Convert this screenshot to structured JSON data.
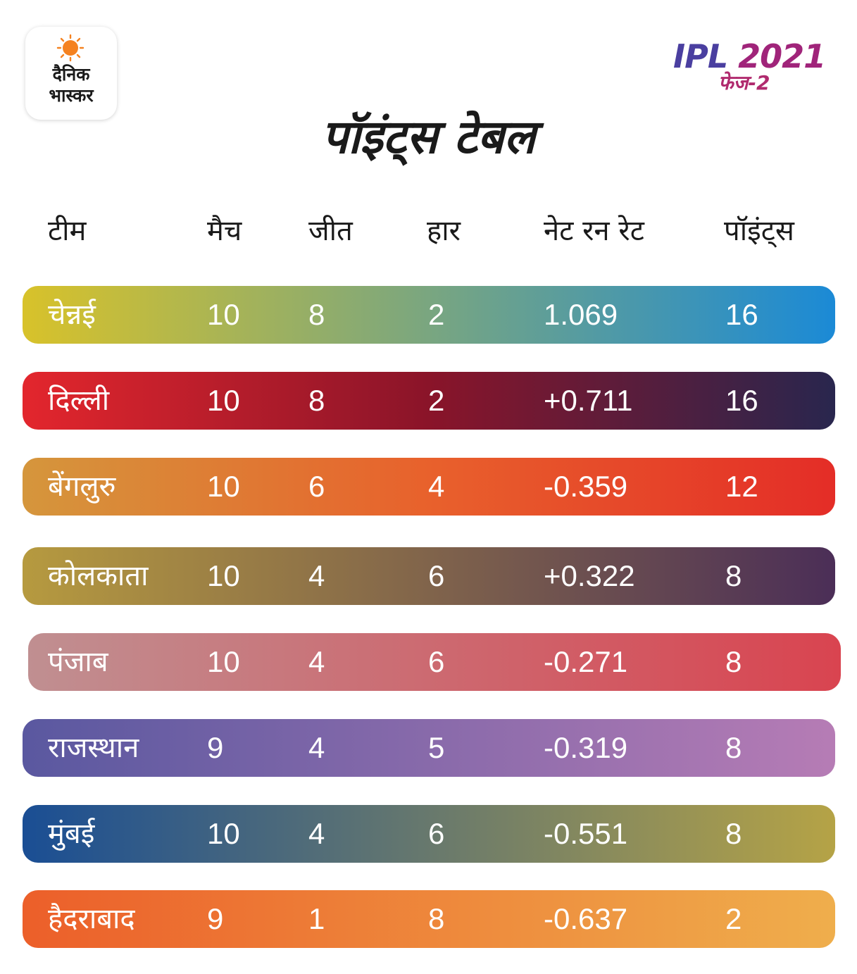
{
  "brand": {
    "line1": "दैनिक",
    "line2": "भास्कर"
  },
  "badge": {
    "title": "IPL",
    "year": "2021",
    "phase": "फेज-2"
  },
  "title": "पॉइंट्स टेबल",
  "headers": {
    "team": "टीम",
    "matches": "मैच",
    "won": "जीत",
    "lost": "हार",
    "nrr": "नेट रन रेट",
    "points": "पॉइंट्स"
  },
  "rows": [
    {
      "team": "चेन्नई",
      "matches": "10",
      "won": "8",
      "lost": "2",
      "nrr": "1.069",
      "points": "16",
      "colors": [
        "#d8c22a",
        "#1b8ad6"
      ]
    },
    {
      "team": "दिल्ली",
      "matches": "10",
      "won": "8",
      "lost": "2",
      "nrr": "+0.711",
      "points": "16",
      "colors": [
        "#e3262d",
        "#8a1429",
        "#29264e"
      ]
    },
    {
      "team": "बेंगलुरु",
      "matches": "10",
      "won": "6",
      "lost": "4",
      "nrr": "-0.359",
      "points": "12",
      "colors": [
        "#d5963c",
        "#e8612c",
        "#e42d27"
      ]
    },
    {
      "team": "कोलकाता",
      "matches": "10",
      "won": "4",
      "lost": "6",
      "nrr": "+0.322",
      "points": "8",
      "colors": [
        "#b69a3f",
        "#4b2e57"
      ]
    },
    {
      "team": "पंजाब",
      "matches": "10",
      "won": "4",
      "lost": "6",
      "nrr": "-0.271",
      "points": "8",
      "colors": [
        "#c08f91",
        "#d94450"
      ]
    },
    {
      "team": "राजस्थान",
      "matches": "9",
      "won": "4",
      "lost": "5",
      "nrr": "-0.319",
      "points": "8",
      "colors": [
        "#5a58a0",
        "#b67cb5"
      ]
    },
    {
      "team": "मुंबई",
      "matches": "10",
      "won": "4",
      "lost": "6",
      "nrr": "-0.551",
      "points": "8",
      "colors": [
        "#1a4e94",
        "#b5a346"
      ]
    },
    {
      "team": "हैदराबाद",
      "matches": "9",
      "won": "1",
      "lost": "8",
      "nrr": "-0.637",
      "points": "2",
      "colors": [
        "#ec5f2a",
        "#efae4c"
      ]
    }
  ]
}
